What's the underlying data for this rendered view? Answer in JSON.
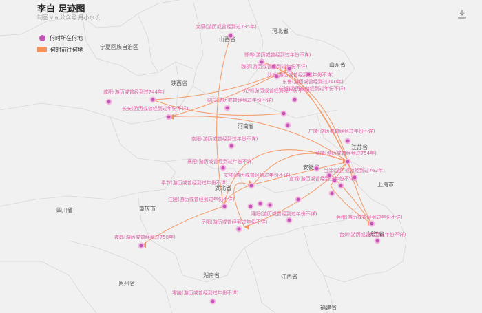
{
  "header": {
    "title": "李白 足迹图",
    "subtitle": "制图 via 公众号 月小水长"
  },
  "legend": {
    "location": "何时所在何地",
    "route": "何时前往何地"
  },
  "colors": {
    "location_dot": "#c355b8",
    "label": "#e05ca4",
    "route_line": "#f4915a",
    "map_fill": "#f1f1f1",
    "border": "#d6d6d6"
  },
  "toolbox": {
    "icon": "download-icon"
  },
  "provinces": [
    "宁夏回族自治区",
    "山西省",
    "河北省",
    "山东省",
    "陕西省",
    "河南省",
    "江苏省",
    "安徽省",
    "上海市",
    "四川省",
    "重庆市",
    "湖北省",
    "浙江省",
    "贵州省",
    "湖南省",
    "江西省",
    "福建省"
  ],
  "places": [
    "太原(游历或曾经到过735年)",
    "邯郸(游历或曾经到过年份不详)",
    "魏郡(游历或曾经到过年份不详)",
    "沙丘(游历或曾经到过年份不详)",
    "东鲁(游历或曾经到过740年)",
    "任城(游历或曾经到过年份不详)",
    "兖州(游历或曾经到过年份不详)",
    "咸阳(游历或曾经到过744年)",
    "长安(游历或曾经到过年份不详)",
    "梁园(游历或曾经到过年份不详)",
    "南阳(游历或曾经到过年份不详)",
    "襄阳(游历或曾经到过年份不详)",
    "安陆(游历或曾经到过年份不详)",
    "奉节(游历或曾经到过年份不详)",
    "江陵(游历或曾经到过年份不详)",
    "岳阳(游历或曾经到过年份不详)",
    "浔阳(游历或曾经到过年份不详)",
    "夜郎(游历或曾经到过758年)",
    "金陵(游历或曾经到过754年)",
    "广陵(游历或曾经到过年份不详)",
    "宣城(游历或曾经到过年份不详)",
    "当涂(游历或曾经到过762年)",
    "会稽(游历或曾经到过年份不详)",
    "台州(游历或曾经到过年份不详)",
    "零陵(游历或曾经到过年份不详)"
  ]
}
